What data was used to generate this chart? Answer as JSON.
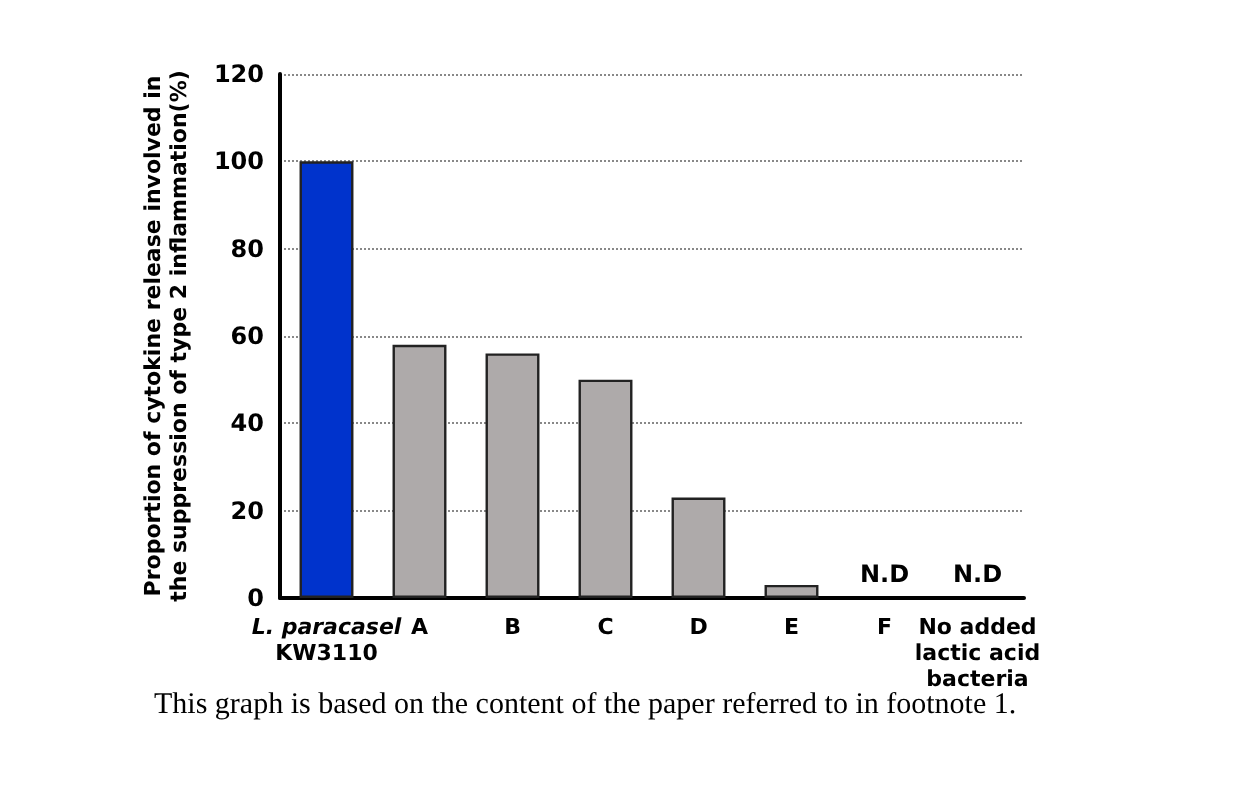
{
  "chart_data": {
    "type": "bar",
    "ylabel": "Proportion of cytokine release involved in\nthe suppression of type 2 inflammation(%)",
    "categories": [
      "L. paracasel\nKW3110",
      "A",
      "B",
      "C",
      "D",
      "E",
      "F",
      "No added\nlactic acid\nbacteria"
    ],
    "values": [
      100,
      58,
      56,
      50,
      23,
      3,
      null,
      null
    ],
    "value_labels": [
      null,
      null,
      null,
      null,
      null,
      null,
      "N.D",
      "N.D"
    ],
    "colors": [
      "#0033cc",
      "#aeaaaa",
      "#aeaaaa",
      "#aeaaaa",
      "#aeaaaa",
      "#aeaaaa",
      "#aeaaaa",
      "#aeaaaa"
    ],
    "ylim": [
      0,
      120
    ],
    "yticks": [
      0,
      20,
      40,
      60,
      80,
      100,
      120
    ],
    "grid": "y",
    "annotations": [
      "This graph is based on the content of the paper referred to in footnote 1."
    ]
  }
}
